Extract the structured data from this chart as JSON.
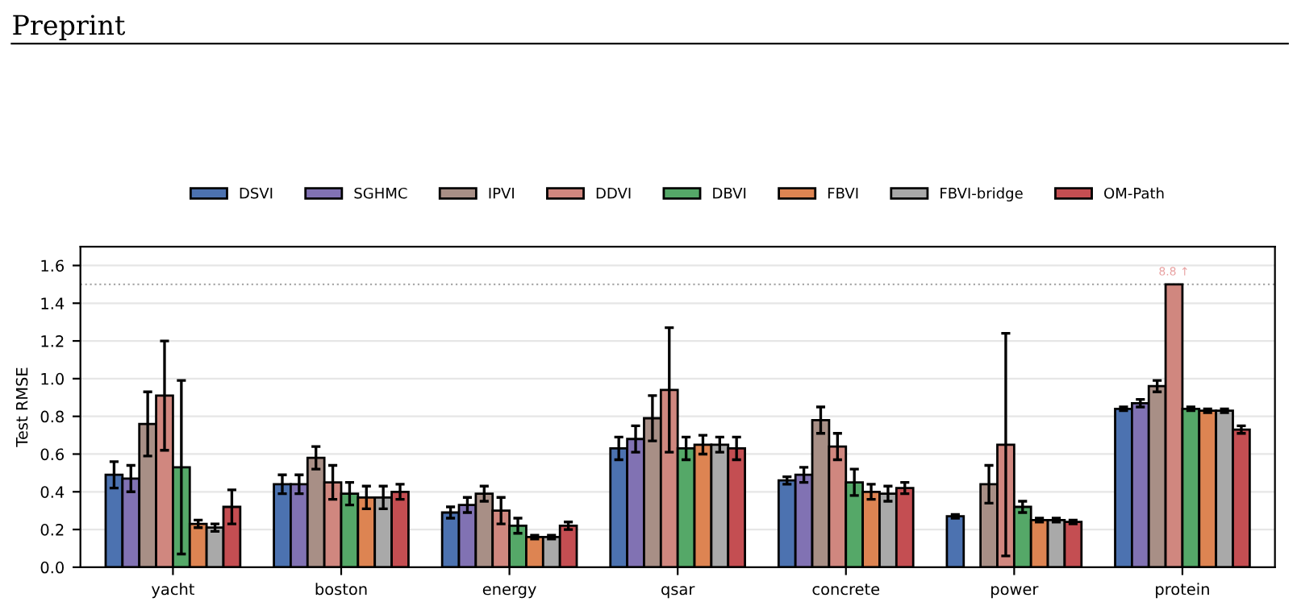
{
  "chart_data": {
    "type": "bar",
    "ylabel": "Test RMSE",
    "categories": [
      "yacht",
      "boston",
      "energy",
      "qsar",
      "concrete",
      "power",
      "protein"
    ],
    "series": [
      {
        "name": "DSVI",
        "color": "#4c72b0",
        "values": [
          0.49,
          0.44,
          0.29,
          0.63,
          0.46,
          0.27,
          0.84
        ],
        "errors": [
          0.07,
          0.05,
          0.03,
          0.06,
          0.02,
          0.01,
          0.01
        ]
      },
      {
        "name": "SGHMC",
        "color": "#8172b3",
        "values": [
          0.47,
          0.44,
          0.33,
          0.68,
          0.49,
          null,
          0.87
        ],
        "errors": [
          0.07,
          0.05,
          0.04,
          0.07,
          0.04,
          null,
          0.02
        ]
      },
      {
        "name": "IPVI",
        "color": "#a88f86",
        "values": [
          0.76,
          0.58,
          0.39,
          0.79,
          0.78,
          0.44,
          0.96
        ],
        "errors": [
          0.17,
          0.06,
          0.04,
          0.12,
          0.07,
          0.1,
          0.03
        ]
      },
      {
        "name": "DDVI",
        "color": "#d0877f",
        "values": [
          0.91,
          0.45,
          0.3,
          0.94,
          0.64,
          0.65,
          1.5
        ],
        "errors": [
          0.29,
          0.09,
          0.07,
          0.33,
          0.07,
          0.59,
          null
        ]
      },
      {
        "name": "DBVI",
        "color": "#55a868",
        "values": [
          0.53,
          0.39,
          0.22,
          0.63,
          0.45,
          0.32,
          0.84
        ],
        "errors": [
          0.46,
          0.06,
          0.04,
          0.06,
          0.07,
          0.03,
          0.01
        ]
      },
      {
        "name": "FBVI",
        "color": "#dd8452",
        "values": [
          0.23,
          0.37,
          0.16,
          0.65,
          0.4,
          0.25,
          0.83
        ],
        "errors": [
          0.02,
          0.06,
          0.01,
          0.05,
          0.04,
          0.01,
          0.01
        ]
      },
      {
        "name": "FBVI-bridge",
        "color": "#a9a9a9",
        "values": [
          0.21,
          0.37,
          0.16,
          0.65,
          0.39,
          0.25,
          0.83
        ],
        "errors": [
          0.02,
          0.06,
          0.01,
          0.04,
          0.04,
          0.01,
          0.01
        ]
      },
      {
        "name": "OM-Path",
        "color": "#c44e52",
        "values": [
          0.32,
          0.4,
          0.22,
          0.63,
          0.42,
          0.24,
          0.73
        ],
        "errors": [
          0.09,
          0.04,
          0.02,
          0.06,
          0.03,
          0.01,
          0.02
        ]
      }
    ],
    "ylim": [
      0,
      1.7
    ],
    "yticks": [
      {
        "value": 0,
        "label": "0.0"
      },
      0.2,
      0.4,
      0.6,
      0.8,
      {
        "value": 1,
        "label": "1.0"
      },
      1.2,
      1.4,
      1.6
    ],
    "ref_lines": [
      {
        "axis": "y",
        "value": 1.5,
        "label": null,
        "color": "#aaaaaa",
        "line_style": "dotted"
      }
    ],
    "annotations": [
      "Preprint",
      {
        "text": "8.8 ↑",
        "x": "protein",
        "y": 1.5
      }
    ],
    "grid": "y",
    "legend": "top"
  }
}
